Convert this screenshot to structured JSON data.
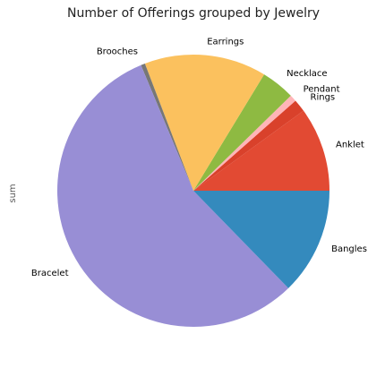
{
  "chart_data": {
    "type": "pie",
    "title": "Number of Offerings grouped by Jewelry",
    "ylabel": "sum",
    "slices": [
      {
        "label": "Anklet",
        "value": 10.0,
        "color": "#E24A33"
      },
      {
        "label": "Rings",
        "value": 1.5,
        "color": "#D9412B"
      },
      {
        "label": "Pendant",
        "value": 0.8,
        "color": "#FFB5B8"
      },
      {
        "label": "Necklace",
        "value": 4.0,
        "color": "#8EBA42"
      },
      {
        "label": "Earrings",
        "value": 14.5,
        "color": "#FBC15E"
      },
      {
        "label": "Brooches",
        "value": 0.5,
        "color": "#777777"
      },
      {
        "label": "Bracelet",
        "value": 56.0,
        "color": "#988ED5"
      },
      {
        "label": "Bangles",
        "value": 12.7,
        "color": "#348ABD"
      }
    ]
  }
}
